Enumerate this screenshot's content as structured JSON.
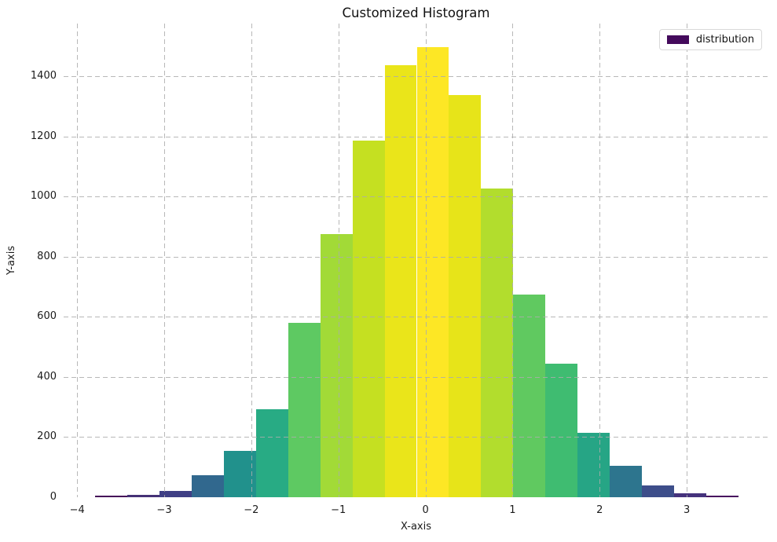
{
  "title": "Customized Histogram",
  "axes": {
    "xlabel": "X-axis",
    "ylabel": "Y-axis"
  },
  "legend": {
    "label": "distribution",
    "swatch_color": "#440a5c"
  },
  "chart_data": {
    "type": "bar",
    "subtype": "histogram",
    "title": "Customized Histogram",
    "xlabel": "X-axis",
    "ylabel": "Y-axis",
    "legend_entries": [
      "distribution"
    ],
    "legend_position": "upper right",
    "grid": {
      "visible": true,
      "linestyle": "dashed",
      "color": "#b0b0b0"
    },
    "bin_start": -3.79,
    "bin_width": 0.369,
    "values": [
      5,
      8,
      22,
      72,
      155,
      293,
      580,
      875,
      1185,
      1436,
      1497,
      1338,
      1027,
      675,
      445,
      214,
      105,
      39,
      13,
      6
    ],
    "bar_colors": [
      "#450a58",
      "#453176",
      "#3f3f85",
      "#31688e",
      "#21918c",
      "#28ab84",
      "#5ec962",
      "#a2da37",
      "#c5e021",
      "#eae51a",
      "#fde725",
      "#e7e419",
      "#b2dd2d",
      "#60c960",
      "#3fbc71",
      "#26a585",
      "#2d758e",
      "#3d4e8a",
      "#45327c",
      "#48105f"
    ],
    "xlim": [
      -4.155,
      3.937
    ],
    "ylim": [
      0,
      1575
    ],
    "x_ticks": [
      -4,
      -3,
      -2,
      -1,
      0,
      1,
      2,
      3
    ],
    "x_tick_labels": [
      "−4",
      "−3",
      "−2",
      "−1",
      "0",
      "1",
      "2",
      "3"
    ],
    "y_ticks": [
      0,
      200,
      400,
      600,
      800,
      1000,
      1200,
      1400
    ],
    "y_tick_labels": [
      "0",
      "200",
      "400",
      "600",
      "800",
      "1000",
      "1200",
      "1400"
    ]
  }
}
